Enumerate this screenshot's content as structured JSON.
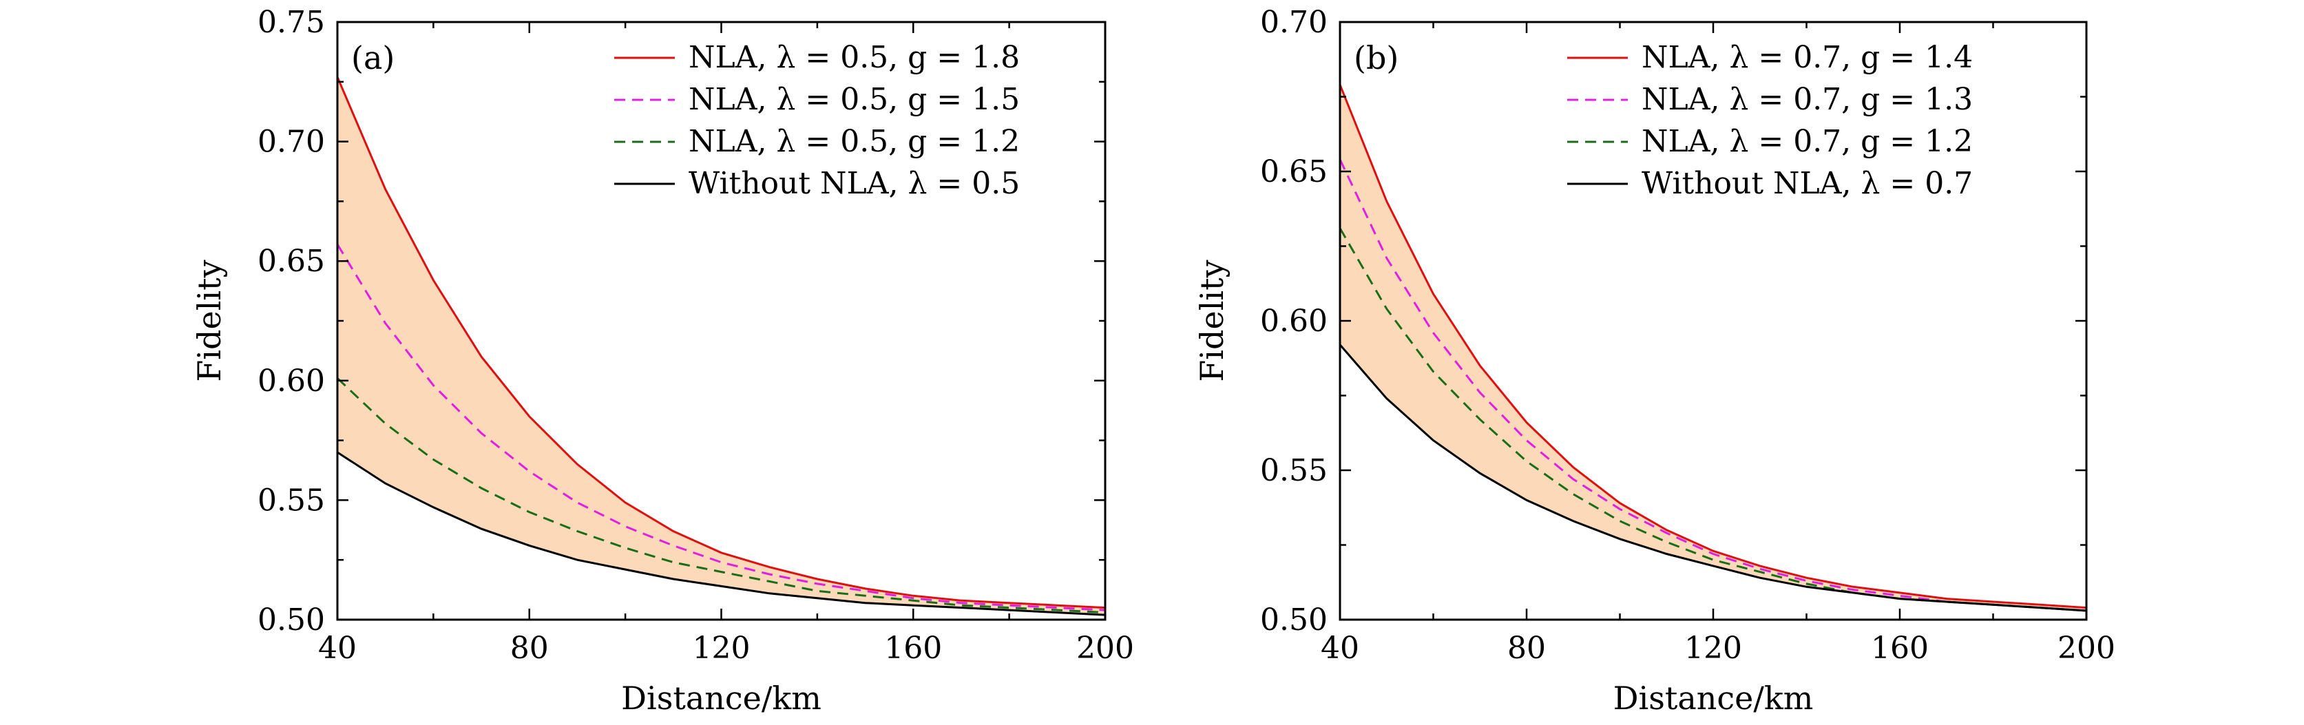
{
  "chart_data": [
    {
      "type": "line",
      "panel_label": "(a)",
      "xlabel": "Distance/km",
      "ylabel": "Fidelity",
      "xlim": [
        40,
        200
      ],
      "ylim": [
        0.5,
        0.75
      ],
      "xticks": [
        40,
        80,
        120,
        160,
        200
      ],
      "xtick_labels": [
        "40",
        "80",
        "120",
        "160",
        "200"
      ],
      "yticks": [
        0.5,
        0.55,
        0.6,
        0.65,
        0.7,
        0.75
      ],
      "ytick_labels": [
        "0.50",
        "0.55",
        "0.60",
        "0.65",
        "0.70",
        "0.75"
      ],
      "legend_position": "top-right",
      "shaded_region": {
        "between": [
          "NLA, λ = 0.5, g = 1.8",
          "Without NLA, λ = 0.5"
        ],
        "color": "#fcd9b8"
      },
      "x": [
        40,
        50,
        60,
        70,
        80,
        90,
        100,
        110,
        120,
        130,
        140,
        150,
        160,
        170,
        180,
        190,
        200
      ],
      "series": [
        {
          "name": "NLA, λ = 0.5, g = 1.8",
          "color": "#dd1111",
          "style": "solid",
          "values": [
            0.727,
            0.68,
            0.642,
            0.61,
            0.585,
            0.565,
            0.549,
            0.537,
            0.528,
            0.522,
            0.517,
            0.513,
            0.51,
            0.508,
            0.507,
            0.506,
            0.505
          ]
        },
        {
          "name": "NLA, λ = 0.5, g = 1.5",
          "color": "#e020e0",
          "style": "dashed",
          "values": [
            0.657,
            0.624,
            0.598,
            0.578,
            0.562,
            0.549,
            0.539,
            0.531,
            0.524,
            0.519,
            0.515,
            0.512,
            0.509,
            0.507,
            0.506,
            0.505,
            0.504
          ]
        },
        {
          "name": "NLA, λ = 0.5, g = 1.2",
          "color": "#1a6e1a",
          "style": "dashed",
          "values": [
            0.601,
            0.582,
            0.567,
            0.555,
            0.545,
            0.537,
            0.53,
            0.524,
            0.52,
            0.516,
            0.512,
            0.51,
            0.508,
            0.506,
            0.505,
            0.504,
            0.503
          ]
        },
        {
          "name": "Without NLA, λ = 0.5",
          "color": "#000000",
          "style": "solid",
          "values": [
            0.57,
            0.557,
            0.547,
            0.538,
            0.531,
            0.525,
            0.521,
            0.517,
            0.514,
            0.511,
            0.509,
            0.507,
            0.506,
            0.505,
            0.504,
            0.503,
            0.502
          ]
        }
      ]
    },
    {
      "type": "line",
      "panel_label": "(b)",
      "xlabel": "Distance/km",
      "ylabel": "Fidelity",
      "xlim": [
        40,
        200
      ],
      "ylim": [
        0.5,
        0.7
      ],
      "xticks": [
        40,
        80,
        120,
        160,
        200
      ],
      "xtick_labels": [
        "40",
        "80",
        "120",
        "160",
        "200"
      ],
      "yticks": [
        0.5,
        0.55,
        0.6,
        0.65,
        0.7
      ],
      "ytick_labels": [
        "0.50",
        "0.55",
        "0.60",
        "0.65",
        "0.70"
      ],
      "legend_position": "top-right",
      "shaded_region": {
        "between": [
          "NLA, λ = 0.7, g = 1.4",
          "Without NLA, λ = 0.7"
        ],
        "color": "#fcd9b8"
      },
      "x": [
        40,
        50,
        60,
        70,
        80,
        90,
        100,
        110,
        120,
        130,
        140,
        150,
        160,
        170,
        180,
        190,
        200
      ],
      "series": [
        {
          "name": "NLA, λ = 0.7, g = 1.4",
          "color": "#dd1111",
          "style": "solid",
          "values": [
            0.679,
            0.64,
            0.609,
            0.585,
            0.566,
            0.551,
            0.539,
            0.53,
            0.523,
            0.518,
            0.514,
            0.511,
            0.509,
            0.507,
            0.506,
            0.505,
            0.504
          ]
        },
        {
          "name": "NLA, λ = 0.7, g = 1.3",
          "color": "#e020e0",
          "style": "dashed",
          "values": [
            0.654,
            0.621,
            0.596,
            0.576,
            0.56,
            0.547,
            0.537,
            0.529,
            0.522,
            0.517,
            0.513,
            0.51,
            0.508,
            0.506,
            0.505,
            0.504,
            0.503
          ]
        },
        {
          "name": "NLA, λ = 0.7, g = 1.2",
          "color": "#1a6e1a",
          "style": "dashed",
          "values": [
            0.631,
            0.604,
            0.583,
            0.567,
            0.553,
            0.542,
            0.533,
            0.526,
            0.52,
            0.516,
            0.512,
            0.509,
            0.507,
            0.506,
            0.505,
            0.504,
            0.503
          ]
        },
        {
          "name": "Without NLA, λ = 0.7",
          "color": "#000000",
          "style": "solid",
          "values": [
            0.592,
            0.574,
            0.56,
            0.549,
            0.54,
            0.533,
            0.527,
            0.522,
            0.518,
            0.514,
            0.511,
            0.509,
            0.507,
            0.506,
            0.505,
            0.504,
            0.503
          ]
        }
      ]
    }
  ]
}
